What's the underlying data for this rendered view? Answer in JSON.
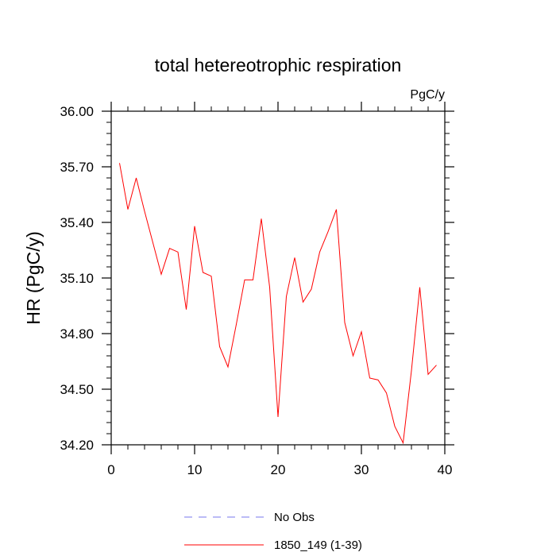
{
  "chart_data": {
    "type": "line",
    "title": "total hetereotrophic respiration",
    "units": "PgC/y",
    "xlabel": "",
    "ylabel": "HR  (PgC/y)",
    "xlim": [
      0,
      40
    ],
    "ylim": [
      34.2,
      36.0
    ],
    "x_ticks": [
      0,
      10,
      20,
      30,
      40
    ],
    "x_tick_labels": [
      "0",
      "10",
      "20",
      "30",
      "40"
    ],
    "y_ticks": [
      34.2,
      34.5,
      34.8,
      35.1,
      35.4,
      35.7,
      36.0
    ],
    "y_tick_labels": [
      "34.20",
      "34.50",
      "34.80",
      "35.10",
      "35.40",
      "35.70",
      "36.00"
    ],
    "grid": false,
    "legend_position": "bottom-center",
    "series": [
      {
        "name": "1850_149 (1-39)",
        "color": "#ff0000",
        "line_style": "solid",
        "x": [
          1,
          2,
          3,
          4,
          5,
          6,
          7,
          8,
          9,
          10,
          11,
          12,
          13,
          14,
          15,
          16,
          17,
          18,
          19,
          20,
          21,
          22,
          23,
          24,
          25,
          26,
          27,
          28,
          29,
          30,
          31,
          32,
          33,
          34,
          35,
          36,
          37,
          38,
          39
        ],
        "values": [
          35.72,
          35.47,
          35.64,
          35.46,
          35.29,
          35.12,
          35.26,
          35.24,
          34.93,
          35.38,
          35.13,
          35.11,
          34.73,
          34.62,
          34.85,
          35.09,
          35.09,
          35.42,
          35.05,
          34.35,
          35.0,
          35.21,
          34.97,
          35.04,
          35.24,
          35.35,
          35.47,
          34.86,
          34.68,
          34.81,
          34.56,
          34.55,
          34.48,
          34.3,
          34.21,
          34.6,
          35.05,
          34.58,
          34.63
        ]
      }
    ],
    "legend": [
      {
        "label": "No Obs",
        "color": "#7777ee",
        "line_style": "dashed"
      },
      {
        "label": "1850_149 (1-39)",
        "color": "#ff0000",
        "line_style": "solid"
      }
    ]
  }
}
